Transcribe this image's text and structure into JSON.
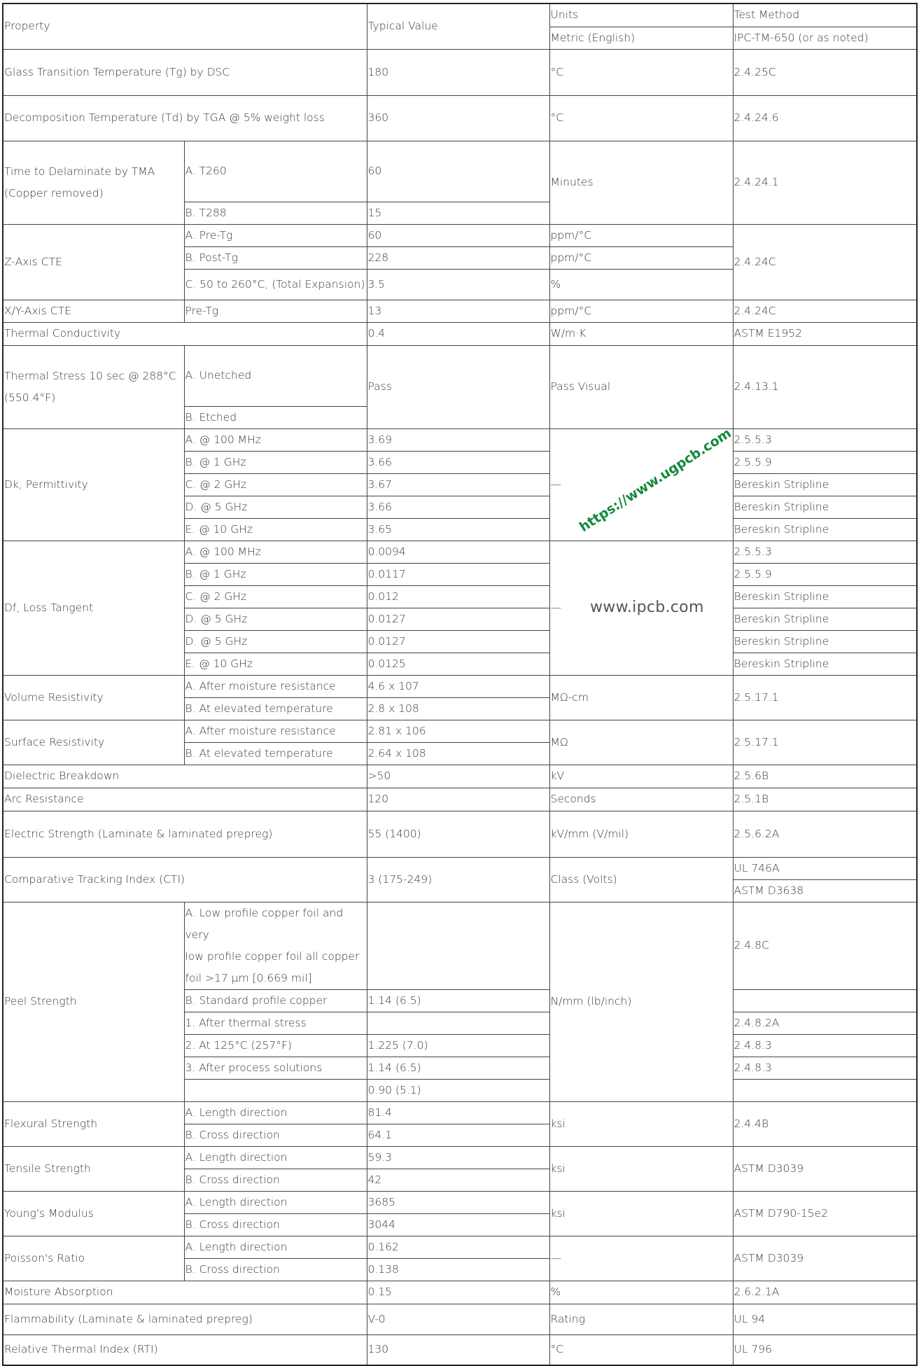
{
  "table": {
    "rows": [
      [
        {
          "t": "Property",
          "rs": 2,
          "cs": 2
        },
        {
          "t": "Typical   Value",
          "rs": 2
        },
        {
          "t": "Units"
        },
        {
          "t": "Test Method"
        }
      ],
      [
        {
          "t": "Metric (English)"
        },
        {
          "t": "IPC-TM-650 (or as noted)"
        }
      ],
      [
        {
          "t": "Glass Transition Temperature (Tg) by DSC",
          "cs": 2
        },
        {
          "t": "180"
        },
        {
          "t": "°C"
        },
        {
          "t": "2.4.25C"
        }
      ],
      [
        {
          "t": "Decomposition Temperature (Td) by TGA @ 5% weight loss",
          "cs": 2
        },
        {
          "t": "360"
        },
        {
          "t": "°C"
        },
        {
          "t": "2.4.24.6"
        }
      ],
      [
        {
          "t": "Time to Delaminate by TMA\n(Copper removed)",
          "rs": 2
        },
        {
          "t": "A. T260"
        },
        {
          "t": "60"
        },
        {
          "t": "Minutes",
          "rs": 2
        },
        {
          "t": "2.4.24.1",
          "rs": 2
        }
      ],
      [
        {
          "t": "B. T288"
        },
        {
          "t": "15"
        }
      ],
      [
        {
          "t": "Z-Axis CTE",
          "rs": 3
        },
        {
          "t": "A. Pre-Tg"
        },
        {
          "t": "60"
        },
        {
          "t": "ppm/°C"
        },
        {
          "t": "2.4.24C",
          "rs": 3
        }
      ],
      [
        {
          "t": "B. Post-Tg"
        },
        {
          "t": "228"
        },
        {
          "t": "ppm/°C"
        }
      ],
      [
        {
          "t": "C. 50 to 260°C, (Total   Expansion)"
        },
        {
          "t": "3.5"
        },
        {
          "t": "%"
        }
      ],
      [
        {
          "t": "X/Y-Axis CTE"
        },
        {
          "t": "Pre-Tg"
        },
        {
          "t": "13"
        },
        {
          "t": "ppm/°C"
        },
        {
          "t": "2.4.24C"
        }
      ],
      [
        {
          "t": "Thermal Conductivity",
          "cs": 2
        },
        {
          "t": "0.4"
        },
        {
          "t": "W/m·K"
        },
        {
          "t": "ASTM E1952"
        }
      ],
      [
        {
          "t": "Thermal Stress 10 sec @ 288°C\n(550.4°F)",
          "rs": 2
        },
        {
          "t": "A. Unetched"
        },
        {
          "t": "Pass",
          "rs": 2
        },
        {
          "t": "Pass Visual",
          "rs": 2
        },
        {
          "t": "2.4.13.1",
          "rs": 2
        }
      ],
      [
        {
          "t": "B. Etched"
        }
      ],
      [
        {
          "t": "Dk, Permittivity",
          "rs": 5
        },
        {
          "t": "A. @ 100 MHz"
        },
        {
          "t": "3.69"
        },
        {
          "t": "—",
          "rs": 5
        },
        {
          "t": "2.5.5.3"
        }
      ],
      [
        {
          "t": "B. @ 1 GHz"
        },
        {
          "t": "3.66"
        },
        {
          "t": "2.5.5.9"
        }
      ],
      [
        {
          "t": "C. @ 2 GHz"
        },
        {
          "t": "3.67"
        },
        {
          "t": "Bereskin Stripline"
        }
      ],
      [
        {
          "t": "D. @ 5 GHz"
        },
        {
          "t": "3.66"
        },
        {
          "t": "Bereskin Stripline"
        }
      ],
      [
        {
          "t": "E. @ 10 GHz"
        },
        {
          "t": "3.65"
        },
        {
          "t": "Bereskin Stripline"
        }
      ],
      [
        {
          "t": "Df, Loss Tangent",
          "rs": 6
        },
        {
          "t": "A. @ 100 MHz"
        },
        {
          "t": "0.0094"
        },
        {
          "t": "—",
          "rs": 6
        },
        {
          "t": "2.5.5.3"
        }
      ],
      [
        {
          "t": "B. @ 1 GHz"
        },
        {
          "t": "0.0117"
        },
        {
          "t": "2.5.5.9"
        }
      ],
      [
        {
          "t": "C. @ 2 GHz"
        },
        {
          "t": "0.012"
        },
        {
          "t": "Bereskin Stripline"
        }
      ],
      [
        {
          "t": "D. @ 5 GHz"
        },
        {
          "t": "0.0127"
        },
        {
          "t": "Bereskin Stripline"
        }
      ],
      [
        {
          "t": "D. @ 5 GHz"
        },
        {
          "t": "0.0127"
        },
        {
          "t": "Bereskin Stripline"
        }
      ],
      [
        {
          "t": "E. @ 10 GHz"
        },
        {
          "t": "0.0125"
        },
        {
          "t": "Bereskin Stripline"
        }
      ],
      [
        {
          "t": "Volume Resistivity",
          "rs": 2
        },
        {
          "t": "A. After moisture resistance"
        },
        {
          "t": "4.6 x 107"
        },
        {
          "t": "MΩ-cm",
          "rs": 2
        },
        {
          "t": "2.5.17.1",
          "rs": 2
        }
      ],
      [
        {
          "t": "B. At elevated temperature"
        },
        {
          "t": "2.8 x 108"
        }
      ],
      [
        {
          "t": "Surface Resistivity",
          "rs": 2
        },
        {
          "t": "A. After moisture resistance"
        },
        {
          "t": "2.81 x 106"
        },
        {
          "t": "MΩ",
          "rs": 2
        },
        {
          "t": "2.5.17.1",
          "rs": 2
        }
      ],
      [
        {
          "t": "B. At elevated temperature"
        },
        {
          "t": "2.64 x 108"
        }
      ],
      [
        {
          "t": "Dielectric Breakdown",
          "cs": 2
        },
        {
          "t": ">50"
        },
        {
          "t": "kV"
        },
        {
          "t": "2.5.6B"
        }
      ],
      [
        {
          "t": "Arc Resistance",
          "cs": 2
        },
        {
          "t": "120"
        },
        {
          "t": "Seconds"
        },
        {
          "t": "2.5.1B"
        }
      ],
      [
        {
          "t": "Electric Strength (Laminate & laminated prepreg)",
          "cs": 2
        },
        {
          "t": "55 (1400)"
        },
        {
          "t": "kV/mm (V/mil)"
        },
        {
          "t": "2.5.6.2A"
        }
      ],
      [
        {
          "t": "Comparative Tracking Index (CTI)",
          "cs": 2,
          "rs": 2
        },
        {
          "t": "3 (175-249)",
          "rs": 2
        },
        {
          "t": "Class (Volts)",
          "rs": 2
        },
        {
          "t": "UL 746A"
        }
      ],
      [
        {
          "t": "ASTM D3638"
        }
      ],
      [
        {
          "t": "Peel Strength",
          "rs": 6
        },
        {
          "t": "A. Low profile copper foil and very\nlow profile copper foil all   copper\nfoil >17 µm [0.669 mil]"
        },
        {
          "t": ""
        },
        {
          "t": "N/mm (lb/inch)",
          "rs": 6
        },
        {
          "t": "2.4.8C"
        }
      ],
      [
        {
          "t": "B. Standard profile copper"
        },
        {
          "t": "1.14 (6.5)"
        },
        {
          "t": ""
        }
      ],
      [
        {
          "t": "   1.   After thermal stress"
        },
        {
          "t": ""
        },
        {
          "t": "2.4.8.2A"
        }
      ],
      [
        {
          "t": "   2. At   125°C (257°F)"
        },
        {
          "t": "1.225 (7.0)"
        },
        {
          "t": "2.4.8.3"
        }
      ],
      [
        {
          "t": "   3.   After process solutions"
        },
        {
          "t": "1.14 (6.5)"
        },
        {
          "t": "2.4.8.3"
        }
      ],
      [
        {
          "t": ""
        },
        {
          "t": "0.90 (5.1)"
        },
        {
          "t": ""
        }
      ],
      [
        {
          "t": "Flexural Strength",
          "rs": 2
        },
        {
          "t": "A. Length direction"
        },
        {
          "t": "81.4"
        },
        {
          "t": "ksi",
          "rs": 2
        },
        {
          "t": "2.4.4B",
          "rs": 2
        }
      ],
      [
        {
          "t": "B. Cross direction"
        },
        {
          "t": "64.1"
        }
      ],
      [
        {
          "t": "Tensile Strength",
          "rs": 2
        },
        {
          "t": "A. Length direction"
        },
        {
          "t": "59.3"
        },
        {
          "t": "ksi",
          "rs": 2
        },
        {
          "t": "ASTM D3039",
          "rs": 2
        }
      ],
      [
        {
          "t": "B. Cross direction"
        },
        {
          "t": "42"
        }
      ],
      [
        {
          "t": "Young's Modulus",
          "rs": 2
        },
        {
          "t": "A. Length direction"
        },
        {
          "t": "3685"
        },
        {
          "t": "ksi",
          "rs": 2
        },
        {
          "t": "ASTM D790-15e2",
          "rs": 2
        }
      ],
      [
        {
          "t": "B. Cross direction"
        },
        {
          "t": "3044"
        }
      ],
      [
        {
          "t": "Poisson's Ratio",
          "rs": 2
        },
        {
          "t": "A. Length direction"
        },
        {
          "t": "0.162"
        },
        {
          "t": "—",
          "rs": 2
        },
        {
          "t": "ASTM D3039",
          "rs": 2
        }
      ],
      [
        {
          "t": "B. Cross direction"
        },
        {
          "t": "0.138"
        }
      ],
      [
        {
          "t": "Moisture Absorption",
          "cs": 2
        },
        {
          "t": "0.15"
        },
        {
          "t": "%"
        },
        {
          "t": "2.6.2.1A"
        }
      ],
      [
        {
          "t": "Flammability (Laminate & laminated prepreg)",
          "cs": 2
        },
        {
          "t": "V-0"
        },
        {
          "t": "Rating"
        },
        {
          "t": "UL 94"
        }
      ],
      [
        {
          "t": "Relative Thermal Index (RTI)",
          "cs": 2
        },
        {
          "t": "130"
        },
        {
          "t": "°C"
        },
        {
          "t": "UL 796"
        }
      ]
    ]
  },
  "watermarks": {
    "ipcb": "www.ipcb.com",
    "ugpcb": "https://www.ugpcb.com",
    "ugpcb_color": "#138a3a"
  }
}
